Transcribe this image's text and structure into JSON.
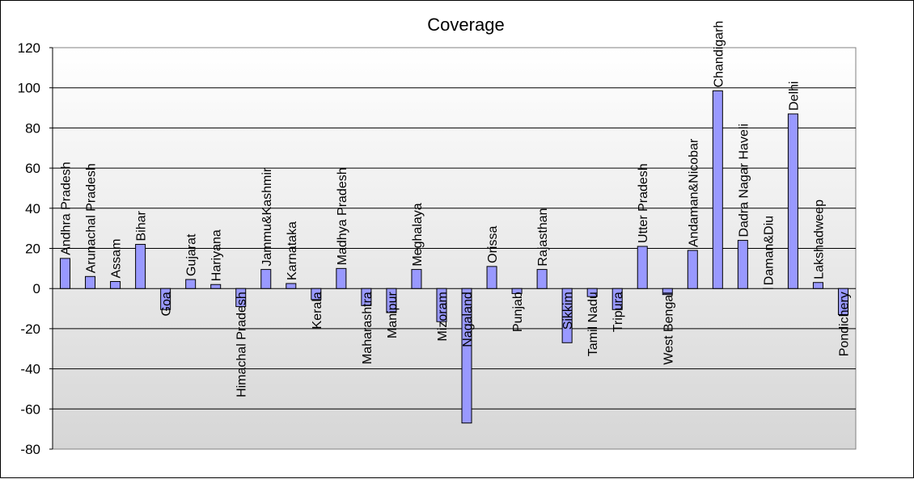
{
  "chart_data": {
    "type": "bar",
    "title": "Coverage",
    "xlabel": "",
    "ylabel": "",
    "ylim": [
      -80,
      120
    ],
    "yticks": [
      120,
      100,
      80,
      60,
      40,
      20,
      0,
      -20,
      -40,
      -60,
      -80
    ],
    "grid": true,
    "legend": "none",
    "bar_color": "#9999ff",
    "categories": [
      "Andhra Pradesh",
      "Arunachal Pradesh",
      "Assam",
      "Bihar",
      "Goa",
      "Gujarat",
      "Hariyana",
      "Himachal Pradesh",
      "Jammu&Kashmir",
      "Karnataka",
      "Kerala",
      "Madhya Pradesh",
      "Maharashtra",
      "Manipur",
      "Meghalaya",
      "Mizoram",
      "Nagaland",
      "Orissa",
      "Punjab",
      "Rajasthan",
      "Sikkim",
      "Tamil Nadu",
      "Tripura",
      "Utter Pradesh",
      "West Bengal",
      "Andaman&Nicobar",
      "Chandigarh",
      "Dadra Nagar Haveli",
      "Daman&Diu",
      "Delhi",
      "Lakshadweep",
      "Pondichery"
    ],
    "values": [
      15,
      6,
      3.5,
      22,
      -10.5,
      4.5,
      2,
      -9,
      9.5,
      2.5,
      -5.5,
      10,
      -8.5,
      -12,
      9.5,
      -16.5,
      -67,
      11,
      -2.5,
      9.5,
      -27,
      -4,
      -10.5,
      21,
      -3,
      19,
      98.5,
      24,
      0,
      87,
      3,
      -13
    ]
  }
}
